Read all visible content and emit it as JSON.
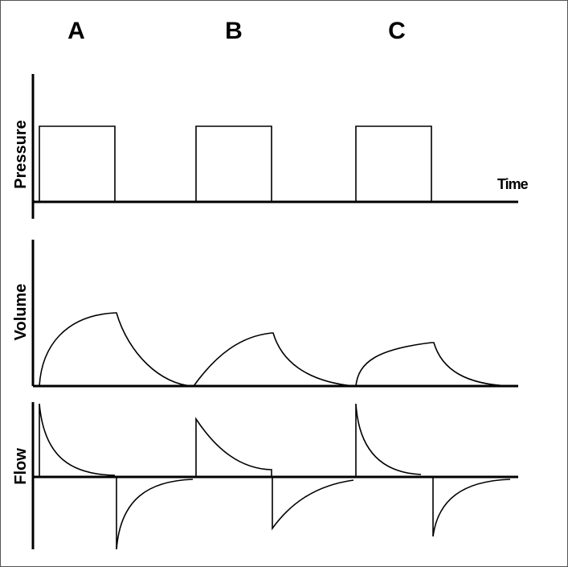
{
  "columns": [
    "A",
    "B",
    "C"
  ],
  "panels": {
    "pressure": {
      "label": "Pressure"
    },
    "volume": {
      "label": "Volume"
    },
    "flow": {
      "label": "Flow"
    }
  },
  "time_label": "Time",
  "colors": {
    "line": "#000000",
    "background": "#ffffff",
    "border": "#555555"
  }
}
